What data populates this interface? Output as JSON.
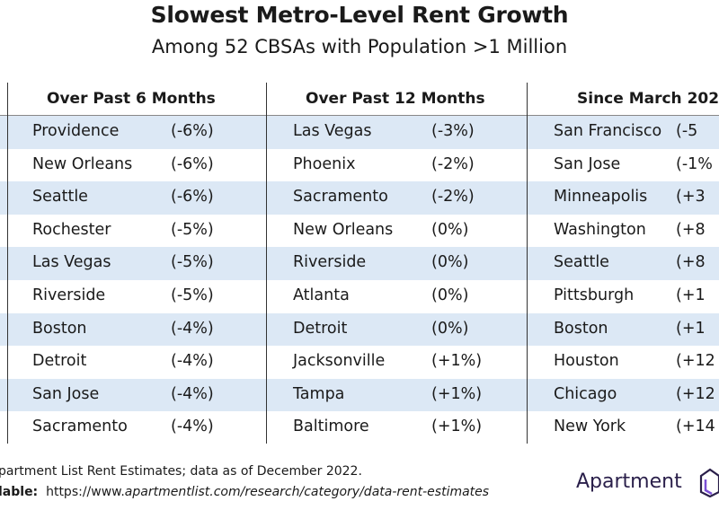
{
  "title": "Slowest Metro-Level Rent Growth",
  "subtitle": "Among 52 CBSAs with Population >1 Million",
  "columns": [
    {
      "header": "Over Past 6 Months",
      "rows": [
        [
          "Providence",
          "(-6%)"
        ],
        [
          "New Orleans",
          "(-6%)"
        ],
        [
          "Seattle",
          "(-6%)"
        ],
        [
          "Rochester",
          "(-5%)"
        ],
        [
          "Las Vegas",
          "(-5%)"
        ],
        [
          "Riverside",
          "(-5%)"
        ],
        [
          "Boston",
          "(-4%)"
        ],
        [
          "Detroit",
          "(-4%)"
        ],
        [
          "San Jose",
          "(-4%)"
        ],
        [
          "Sacramento",
          "(-4%)"
        ]
      ]
    },
    {
      "header": "Over Past 12 Months",
      "rows": [
        [
          "Las Vegas",
          "(-3%)"
        ],
        [
          "Phoenix",
          "(-2%)"
        ],
        [
          "Sacramento",
          "(-2%)"
        ],
        [
          "New Orleans",
          "(0%)"
        ],
        [
          "Riverside",
          "(0%)"
        ],
        [
          "Atlanta",
          "(0%)"
        ],
        [
          "Detroit",
          "(0%)"
        ],
        [
          "Jacksonville",
          "(+1%)"
        ],
        [
          "Tampa",
          "(+1%)"
        ],
        [
          "Baltimore",
          "(+1%)"
        ]
      ]
    },
    {
      "header": "Since March 202",
      "rows": [
        [
          "San Francisco",
          "(-5"
        ],
        [
          "San Jose",
          "(-1%"
        ],
        [
          "Minneapolis",
          "(+3"
        ],
        [
          "Washington",
          "(+8"
        ],
        [
          "Seattle",
          "(+8"
        ],
        [
          "Pittsburgh",
          "(+1"
        ],
        [
          "Boston",
          "(+1"
        ],
        [
          "Houston",
          "(+12"
        ],
        [
          "Chicago",
          "(+12"
        ],
        [
          "New York",
          "(+14"
        ]
      ]
    }
  ],
  "footer": {
    "source": "partment List Rent Estimates; data as of December 2022.",
    "available_label": "lable:",
    "url_prefix": "https://www.",
    "url_rest": "apartmentlist.com/research/category/data-rent-estimates"
  },
  "logo": {
    "text": "Apartment",
    "color": "#2a1f4a",
    "accent": "#7b4fd6"
  },
  "colors": {
    "stripe": "#dce8f5"
  }
}
